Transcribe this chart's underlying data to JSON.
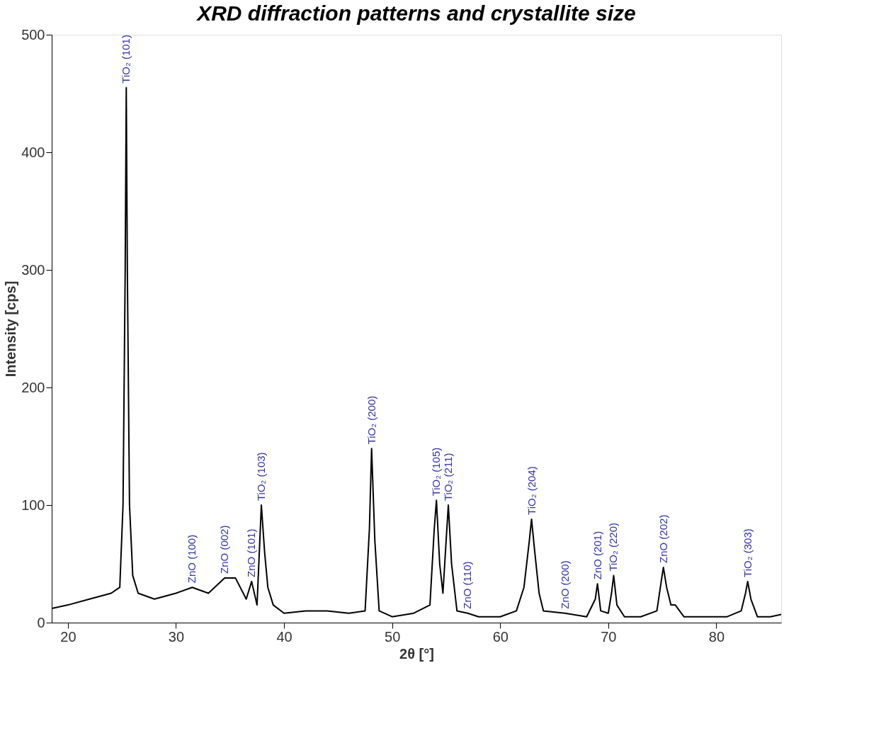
{
  "chart_data": {
    "type": "line",
    "title": "XRD diffraction patterns and crystallite size",
    "xlabel": "2θ [°]",
    "ylabel": "Intensity [cps]",
    "xlim": [
      18.5,
      86
    ],
    "xticks": [
      20,
      30,
      40,
      50,
      60,
      70,
      80
    ],
    "ylim": [
      0,
      500
    ],
    "yticks": [
      0,
      100,
      200,
      300,
      400,
      500
    ],
    "grid": false,
    "marker": "none",
    "line_style": "solid",
    "series": [
      {
        "color": "#000000",
        "x": [
          18.5,
          20,
          22,
          24,
          24.8,
          25.1,
          25.3,
          25.4,
          25.5,
          25.7,
          26,
          26.5,
          28,
          30,
          31.5,
          33,
          34.5,
          35.5,
          36.5,
          37,
          37.5,
          37.9,
          38.2,
          38.5,
          39,
          40,
          42,
          44,
          46,
          47.5,
          47.9,
          48.1,
          48.4,
          48.8,
          50,
          52,
          53.5,
          53.9,
          54.1,
          54.4,
          54.7,
          55.0,
          55.2,
          55.5,
          56,
          57,
          58,
          60,
          61.5,
          62.2,
          62.7,
          62.9,
          63.2,
          63.6,
          64,
          66,
          68,
          68.8,
          69,
          69.3,
          70,
          70.3,
          70.5,
          70.8,
          71.5,
          73,
          74.5,
          74.9,
          75.1,
          75.4,
          75.8,
          76.2,
          77,
          79,
          81,
          82.3,
          82.7,
          82.9,
          83.2,
          83.8,
          85,
          86
        ],
        "values": [
          12,
          15,
          20,
          25,
          30,
          100,
          300,
          455,
          300,
          100,
          40,
          25,
          20,
          25,
          30,
          25,
          38,
          38,
          20,
          35,
          15,
          100,
          60,
          30,
          15,
          8,
          10,
          10,
          8,
          10,
          80,
          148,
          70,
          10,
          5,
          8,
          15,
          80,
          104,
          50,
          25,
          70,
          100,
          50,
          10,
          8,
          5,
          5,
          10,
          30,
          70,
          88,
          60,
          25,
          10,
          8,
          5,
          20,
          33,
          10,
          8,
          25,
          40,
          15,
          5,
          5,
          10,
          35,
          47,
          30,
          15,
          15,
          5,
          5,
          5,
          10,
          25,
          35,
          20,
          5,
          5,
          7
        ]
      }
    ],
    "annotations": [
      {
        "text": "TiO₂ (101)",
        "x": 25.4,
        "y": 455
      },
      {
        "text": "ZnO (100)",
        "x": 31.5,
        "y": 30
      },
      {
        "text": "ZnO (002)",
        "x": 34.5,
        "y": 38
      },
      {
        "text": "ZnO (101)",
        "x": 37,
        "y": 35
      },
      {
        "text": "TiO₂ (103)",
        "x": 37.9,
        "y": 100
      },
      {
        "text": "TiO₂ (200)",
        "x": 48.1,
        "y": 148
      },
      {
        "text": "TiO₂ (105)",
        "x": 54.1,
        "y": 104
      },
      {
        "text": "TiO₂ (211)",
        "x": 55.2,
        "y": 100
      },
      {
        "text": "ZnO (110)",
        "x": 57,
        "y": 8
      },
      {
        "text": "TiO₂ (204)",
        "x": 62.9,
        "y": 88
      },
      {
        "text": "ZnO (200)",
        "x": 66,
        "y": 8
      },
      {
        "text": "ZnO (201)",
        "x": 69,
        "y": 33
      },
      {
        "text": "TiO₂ (220)",
        "x": 70.5,
        "y": 40
      },
      {
        "text": "ZnO (202)",
        "x": 75.1,
        "y": 47
      },
      {
        "text": "TiO₂ (303)",
        "x": 82.9,
        "y": 35
      }
    ]
  }
}
